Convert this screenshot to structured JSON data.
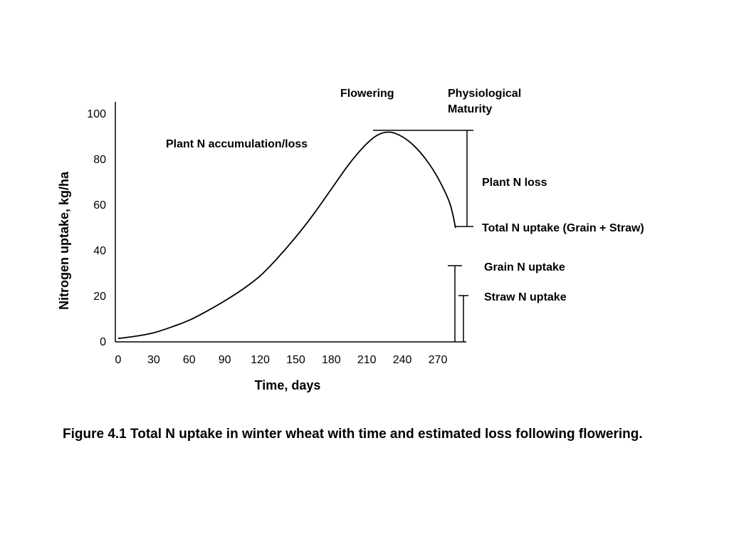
{
  "chart_data": {
    "type": "line",
    "xlabel": "Time, days",
    "ylabel": "Nitrogen uptake, kg/ha",
    "xlim": [
      0,
      290
    ],
    "ylim": [
      0,
      100
    ],
    "x_ticks": [
      "0",
      "30",
      "60",
      "90",
      "120",
      "150",
      "180",
      "210",
      "240",
      "270"
    ],
    "y_ticks": [
      "0",
      "20",
      "40",
      "60",
      "80",
      "100"
    ],
    "series": [
      {
        "name": "Plant N accumulation/loss",
        "x": [
          0,
          15,
          30,
          45,
          60,
          75,
          90,
          105,
          120,
          135,
          150,
          165,
          180,
          195,
          210,
          220,
          230,
          240,
          250,
          260,
          270,
          280,
          285
        ],
        "y": [
          1.5,
          2.5,
          4,
          6.5,
          9.5,
          13.5,
          18,
          23,
          29,
          37,
          46,
          56,
          67,
          78,
          87,
          91,
          92,
          90,
          86,
          80,
          72,
          61,
          50
        ]
      }
    ],
    "annotations": {
      "flowering": "Flowering",
      "maturity_line1": "Physiological",
      "maturity_line2": "Maturity",
      "curve_label": "Plant N accumulation/loss",
      "plant_n_loss": "Plant N loss",
      "total_n_uptake": "Total N uptake (Grain + Straw)",
      "grain_n_uptake": "Grain N uptake",
      "straw_n_uptake": "Straw N uptake"
    },
    "markers": {
      "peak_value": 92,
      "total_n_uptake": 50,
      "grain_n_uptake": 33,
      "straw_n_uptake": 20
    }
  },
  "caption": "Figure 4.1 Total N uptake in winter wheat with time and estimated loss following flowering."
}
